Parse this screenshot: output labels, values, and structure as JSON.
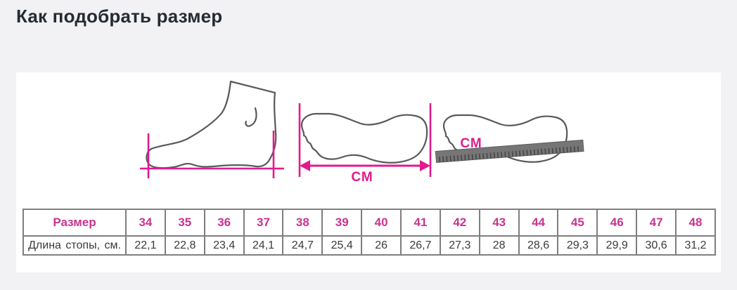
{
  "page": {
    "title": "Как подобрать размер"
  },
  "colors": {
    "background": "#f2f2f4",
    "panel": "#ffffff",
    "heading": "#262b33",
    "magenta": "#e31a8d",
    "table_accent": "#c9338f",
    "foot_outline": "#58595b",
    "table_border": "#7f7f7f",
    "table_text": "#3a3a3a",
    "ruler_fill": "#767676",
    "ruler_ticks": "#454545"
  },
  "illustrations": {
    "sole_arrow": {
      "cm_label": "СМ"
    },
    "sole_ruler": {
      "cm_label": "СМ"
    }
  },
  "table": {
    "row1_label": "Размер",
    "row2_label": "Длина стопы, см.",
    "sizes": [
      "34",
      "35",
      "36",
      "37",
      "38",
      "39",
      "40",
      "41",
      "42",
      "43",
      "44",
      "45",
      "46",
      "47",
      "48"
    ],
    "lengths": [
      "22,1",
      "22,8",
      "23,4",
      "24,1",
      "24,7",
      "25,4",
      "26",
      "26,7",
      "27,3",
      "28",
      "28,6",
      "29,3",
      "29,9",
      "30,6",
      "31,2"
    ]
  }
}
